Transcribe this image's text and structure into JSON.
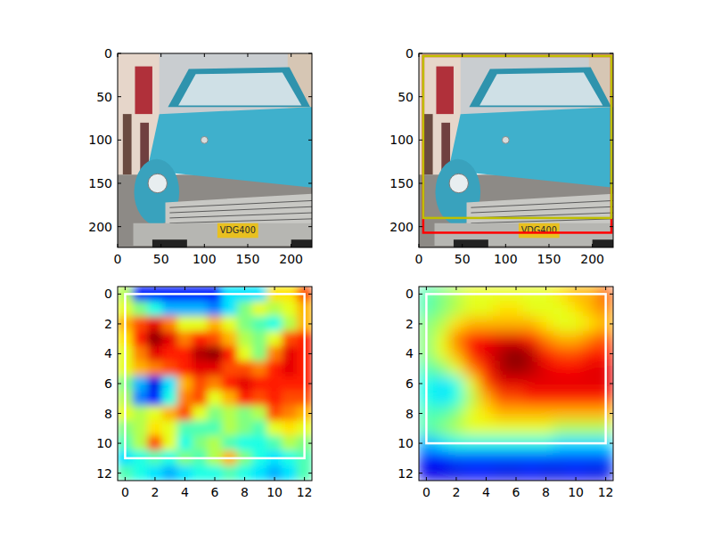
{
  "chart_data": [
    {
      "type": "image",
      "plate_text": "VDG400",
      "xlim": [
        0,
        224
      ],
      "ylim": [
        224,
        0
      ],
      "xticks": [
        0,
        50,
        100,
        150,
        200
      ],
      "yticks": [
        0,
        50,
        100,
        150,
        200
      ]
    },
    {
      "type": "image",
      "plate_text": "VDG400",
      "xlim": [
        0,
        224
      ],
      "ylim": [
        224,
        0
      ],
      "xticks": [
        0,
        50,
        100,
        150,
        200
      ],
      "yticks": [
        0,
        50,
        100,
        150,
        200
      ],
      "boxes": [
        {
          "color": "#ff0000",
          "x0": 5,
          "y0": 3,
          "x1": 222,
          "y1": 207
        },
        {
          "color": "#bfbf00",
          "x0": 5,
          "y0": 3,
          "x1": 222,
          "y1": 190
        }
      ]
    },
    {
      "type": "heatmap",
      "xlim": [
        -0.5,
        12.5
      ],
      "ylim": [
        12.5,
        -0.5
      ],
      "xticks": [
        0,
        2,
        4,
        6,
        8,
        10,
        12
      ],
      "yticks": [
        0,
        2,
        4,
        6,
        8,
        10,
        12
      ],
      "zlim": [
        0,
        1
      ],
      "cells": [
        [
          0.55,
          0.15,
          0.15,
          0.15,
          0.15,
          0.15,
          0.15,
          0.35,
          0.35,
          0.35,
          0.65,
          0.65,
          0.8
        ],
        [
          0.6,
          0.5,
          0.4,
          0.3,
          0.3,
          0.3,
          0.25,
          0.35,
          0.5,
          0.6,
          0.55,
          0.6,
          0.7
        ],
        [
          0.7,
          0.8,
          0.9,
          0.75,
          0.6,
          0.6,
          0.7,
          0.6,
          0.5,
          0.45,
          0.4,
          0.55,
          0.7
        ],
        [
          0.65,
          0.85,
          0.98,
          0.9,
          0.75,
          0.85,
          0.8,
          0.7,
          0.55,
          0.5,
          0.6,
          0.8,
          0.85
        ],
        [
          0.6,
          0.75,
          0.9,
          0.85,
          0.85,
          0.95,
          0.98,
          0.85,
          0.6,
          0.5,
          0.75,
          0.9,
          0.85
        ],
        [
          0.6,
          0.7,
          0.75,
          0.8,
          0.85,
          0.9,
          0.9,
          0.8,
          0.8,
          0.75,
          0.85,
          0.9,
          0.85
        ],
        [
          0.5,
          0.3,
          0.1,
          0.35,
          0.7,
          0.8,
          0.75,
          0.85,
          0.9,
          0.85,
          0.85,
          0.85,
          0.85
        ],
        [
          0.55,
          0.25,
          0.15,
          0.4,
          0.75,
          0.8,
          0.6,
          0.7,
          0.85,
          0.8,
          0.85,
          0.8,
          0.8
        ],
        [
          0.6,
          0.55,
          0.6,
          0.7,
          0.8,
          0.6,
          0.5,
          0.55,
          0.5,
          0.55,
          0.8,
          0.75,
          0.7
        ],
        [
          0.5,
          0.55,
          0.65,
          0.6,
          0.45,
          0.45,
          0.45,
          0.55,
          0.5,
          0.45,
          0.6,
          0.65,
          0.6
        ],
        [
          0.45,
          0.55,
          0.8,
          0.6,
          0.4,
          0.5,
          0.55,
          0.45,
          0.4,
          0.4,
          0.45,
          0.55,
          0.5
        ],
        [
          0.35,
          0.4,
          0.45,
          0.4,
          0.5,
          0.45,
          0.55,
          0.7,
          0.5,
          0.4,
          0.35,
          0.4,
          0.45
        ],
        [
          0.45,
          0.4,
          0.35,
          0.3,
          0.35,
          0.4,
          0.4,
          0.45,
          0.4,
          0.35,
          0.3,
          0.35,
          0.45
        ]
      ],
      "boxes": [
        {
          "color": "#ffffff",
          "x0": 0,
          "y0": 0,
          "x1": 12,
          "y1": 11
        }
      ]
    },
    {
      "type": "heatmap",
      "xlim": [
        -0.5,
        12.5
      ],
      "ylim": [
        12.5,
        -0.5
      ],
      "xticks": [
        0,
        2,
        4,
        6,
        8,
        10,
        12
      ],
      "yticks": [
        0,
        2,
        4,
        6,
        8,
        10,
        12
      ],
      "zlim": [
        0,
        1
      ],
      "cells": [
        [
          0.45,
          0.5,
          0.55,
          0.6,
          0.6,
          0.6,
          0.6,
          0.6,
          0.6,
          0.65,
          0.7,
          0.7,
          0.8
        ],
        [
          0.45,
          0.5,
          0.55,
          0.6,
          0.6,
          0.65,
          0.65,
          0.6,
          0.6,
          0.6,
          0.65,
          0.7,
          0.75
        ],
        [
          0.5,
          0.55,
          0.65,
          0.7,
          0.7,
          0.7,
          0.7,
          0.7,
          0.65,
          0.6,
          0.6,
          0.65,
          0.7
        ],
        [
          0.5,
          0.6,
          0.75,
          0.85,
          0.88,
          0.9,
          0.9,
          0.85,
          0.75,
          0.7,
          0.7,
          0.75,
          0.8
        ],
        [
          0.5,
          0.6,
          0.7,
          0.85,
          0.9,
          0.95,
          1.0,
          0.95,
          0.85,
          0.8,
          0.8,
          0.85,
          0.85
        ],
        [
          0.45,
          0.5,
          0.6,
          0.75,
          0.85,
          0.95,
          0.98,
          0.95,
          0.9,
          0.88,
          0.88,
          0.9,
          0.9
        ],
        [
          0.4,
          0.35,
          0.4,
          0.6,
          0.8,
          0.9,
          0.9,
          0.9,
          0.9,
          0.9,
          0.9,
          0.9,
          0.9
        ],
        [
          0.4,
          0.35,
          0.4,
          0.55,
          0.7,
          0.8,
          0.8,
          0.85,
          0.85,
          0.85,
          0.85,
          0.85,
          0.85
        ],
        [
          0.45,
          0.45,
          0.5,
          0.6,
          0.65,
          0.7,
          0.7,
          0.7,
          0.7,
          0.7,
          0.7,
          0.7,
          0.7
        ],
        [
          0.45,
          0.5,
          0.55,
          0.6,
          0.6,
          0.6,
          0.6,
          0.6,
          0.6,
          0.55,
          0.55,
          0.55,
          0.55
        ],
        [
          0.3,
          0.35,
          0.4,
          0.4,
          0.4,
          0.4,
          0.4,
          0.4,
          0.4,
          0.35,
          0.35,
          0.35,
          0.35
        ],
        [
          0.15,
          0.15,
          0.2,
          0.2,
          0.2,
          0.2,
          0.2,
          0.2,
          0.2,
          0.2,
          0.2,
          0.2,
          0.2
        ],
        [
          0.1,
          0.1,
          0.1,
          0.12,
          0.12,
          0.1,
          0.1,
          0.12,
          0.1,
          0.1,
          0.12,
          0.1,
          0.1
        ]
      ],
      "boxes": [
        {
          "color": "#ffffff",
          "x0": 0,
          "y0": 0,
          "x1": 12,
          "y1": 10
        }
      ]
    }
  ]
}
